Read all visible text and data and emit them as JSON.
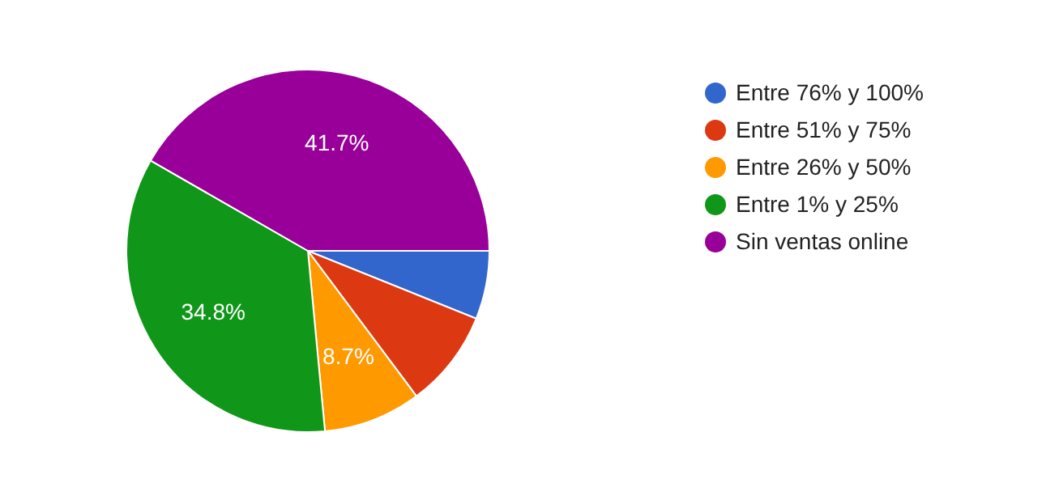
{
  "chart_data": {
    "type": "pie",
    "categories": [
      "Entre 76% y 100%",
      "Entre 51% y 75%",
      "Entre 26% y 50%",
      "Entre 1% y 25%",
      "Sin ventas online"
    ],
    "values": [
      6.1,
      8.7,
      8.7,
      34.8,
      41.7
    ],
    "colors": [
      "#3366cc",
      "#dc3912",
      "#ff9900",
      "#109618",
      "#990099"
    ],
    "value_labels": [
      null,
      null,
      "8.7%",
      "34.8%",
      "41.7%"
    ],
    "legend": "right"
  }
}
